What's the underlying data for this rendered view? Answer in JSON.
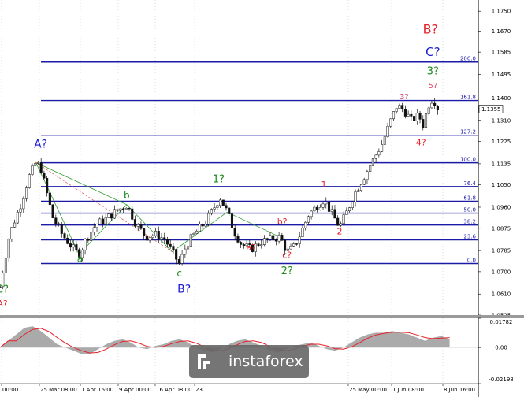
{
  "chart_data": {
    "type": "candlestick",
    "price_axis": {
      "ticks": [
        "1.1750",
        "1.1670",
        "1.1585",
        "1.1495",
        "1.1400",
        "1.1310",
        "1.1225",
        "1.1135",
        "1.1050",
        "1.0960",
        "1.0875",
        "1.0785",
        "1.0700",
        "1.0610",
        "1.0525"
      ],
      "current_price": "1.1355",
      "range": [
        1.0525,
        1.1795
      ]
    },
    "time_axis": [
      "00:00",
      "25 Mar 08:00",
      "1 Apr 16:00",
      "9 Apr 00:00",
      "16 Apr 08:00",
      "23",
      "25 May 00:00",
      "1 Jun 08:00",
      "8 Jun 16:00"
    ],
    "fib_levels": [
      {
        "label": "0.0",
        "price": 1.0733
      },
      {
        "label": "23.6",
        "price": 1.0828
      },
      {
        "label": "38.2",
        "price": 1.0888
      },
      {
        "label": "50.0",
        "price": 1.0936
      },
      {
        "label": "61.8",
        "price": 1.0984
      },
      {
        "label": "76.4",
        "price": 1.1043
      },
      {
        "label": "100.0",
        "price": 1.1139
      },
      {
        "label": "127.2",
        "price": 1.125
      },
      {
        "label": "161.8",
        "price": 1.139
      },
      {
        "label": "200.0",
        "price": 1.1545
      }
    ],
    "wave_labels": [
      {
        "text": "A?",
        "color": "red",
        "x": 0.005,
        "price": 1.056
      },
      {
        "text": "C?",
        "color": "green",
        "x": 0.005,
        "price": 1.0615
      },
      {
        "text": "A?",
        "color": "blue",
        "x": 0.085,
        "price": 1.12
      },
      {
        "text": "a",
        "color": "green",
        "x": 0.167,
        "price": 1.074
      },
      {
        "text": "b",
        "color": "green",
        "x": 0.265,
        "price": 1.0995
      },
      {
        "text": "c",
        "color": "green",
        "x": 0.375,
        "price": 1.068
      },
      {
        "text": "B?",
        "color": "blue",
        "x": 0.385,
        "price": 1.0615
      },
      {
        "text": "1?",
        "color": "green",
        "x": 0.457,
        "price": 1.106
      },
      {
        "text": "a?",
        "color": "red",
        "x": 0.525,
        "price": 1.0785
      },
      {
        "text": "b?",
        "color": "red",
        "x": 0.59,
        "price": 1.089
      },
      {
        "text": "c?",
        "color": "red",
        "x": 0.6,
        "price": 1.0755
      },
      {
        "text": "2?",
        "color": "green",
        "x": 0.6,
        "price": 1.069
      },
      {
        "text": "1",
        "color": "red",
        "x": 0.677,
        "price": 1.104
      },
      {
        "text": "2",
        "color": "red",
        "x": 0.71,
        "price": 1.085
      },
      {
        "text": "3?",
        "color": "pink",
        "x": 0.845,
        "price": 1.1395
      },
      {
        "text": "4?",
        "color": "red",
        "x": 0.88,
        "price": 1.121
      },
      {
        "text": "5?",
        "color": "pink",
        "x": 0.905,
        "price": 1.144
      },
      {
        "text": "3?",
        "color": "green",
        "x": 0.905,
        "price": 1.1495
      },
      {
        "text": "C?",
        "color": "blue",
        "x": 0.905,
        "price": 1.157
      },
      {
        "text": "B?",
        "color": "red",
        "x": 0.9,
        "price": 1.166
      }
    ],
    "path": [
      [
        0.0,
        1.064
      ],
      [
        0.02,
        1.085
      ],
      [
        0.045,
        1.098
      ],
      [
        0.06,
        1.108
      ],
      [
        0.075,
        1.114
      ],
      [
        0.085,
        1.112
      ],
      [
        0.095,
        1.104
      ],
      [
        0.11,
        1.092
      ],
      [
        0.13,
        1.085
      ],
      [
        0.15,
        1.08
      ],
      [
        0.165,
        1.077
      ],
      [
        0.18,
        1.083
      ],
      [
        0.2,
        1.089
      ],
      [
        0.22,
        1.091
      ],
      [
        0.24,
        1.094
      ],
      [
        0.265,
        1.097
      ],
      [
        0.285,
        1.089
      ],
      [
        0.305,
        1.084
      ],
      [
        0.325,
        1.085
      ],
      [
        0.345,
        1.083
      ],
      [
        0.36,
        1.078
      ],
      [
        0.375,
        1.073
      ],
      [
        0.39,
        1.081
      ],
      [
        0.41,
        1.086
      ],
      [
        0.43,
        1.09
      ],
      [
        0.445,
        1.095
      ],
      [
        0.46,
        1.1
      ],
      [
        0.475,
        1.094
      ],
      [
        0.49,
        1.086
      ],
      [
        0.505,
        1.081
      ],
      [
        0.525,
        1.079
      ],
      [
        0.545,
        1.082
      ],
      [
        0.565,
        1.083
      ],
      [
        0.585,
        1.084
      ],
      [
        0.6,
        1.078
      ],
      [
        0.615,
        1.08
      ],
      [
        0.63,
        1.086
      ],
      [
        0.645,
        1.093
      ],
      [
        0.66,
        1.096
      ],
      [
        0.677,
        1.099
      ],
      [
        0.695,
        1.093
      ],
      [
        0.71,
        1.088
      ],
      [
        0.725,
        1.094
      ],
      [
        0.74,
        1.101
      ],
      [
        0.76,
        1.108
      ],
      [
        0.78,
        1.115
      ],
      [
        0.8,
        1.122
      ],
      [
        0.815,
        1.13
      ],
      [
        0.83,
        1.137
      ],
      [
        0.845,
        1.135
      ],
      [
        0.86,
        1.131
      ],
      [
        0.875,
        1.133
      ],
      [
        0.885,
        1.129
      ],
      [
        0.895,
        1.137
      ],
      [
        0.905,
        1.14
      ],
      [
        0.915,
        1.136
      ]
    ],
    "indicator": {
      "ticks": [
        "0.01782",
        "0.00",
        "-0.02198"
      ],
      "range": [
        -0.02198,
        0.01782
      ],
      "values": [
        0.0,
        0.004,
        0.008,
        0.012,
        0.013,
        0.01,
        0.006,
        0.002,
        0.0,
        -0.002,
        -0.004,
        -0.004,
        -0.001,
        0.002,
        0.004,
        0.005,
        0.003,
        0.0,
        -0.001,
        0.001,
        0.002,
        0.004,
        0.005,
        0.003,
        0.0,
        -0.002,
        -0.003,
        -0.001,
        0.002,
        0.004,
        0.005,
        0.003,
        0.001,
        -0.002,
        -0.003,
        -0.001,
        0.001,
        0.002,
        0.003,
        0.001,
        -0.001,
        -0.002,
        0.0,
        0.003,
        0.006,
        0.008,
        0.009,
        0.009,
        0.01,
        0.009,
        0.008,
        0.006,
        0.004,
        0.006,
        0.007,
        0.005
      ]
    },
    "colors": {
      "fib_line": "#1a1aa6",
      "candle": "#111111",
      "green_line": "#2e9a2e",
      "red_dash": "#e05050",
      "indicator_fill": "#aaaaaa",
      "indicator_signal": "#e8202a",
      "watermark_bg": "#666666"
    }
  },
  "watermark": {
    "text": "instaforex",
    "icon": "instaforex-logo-icon"
  }
}
